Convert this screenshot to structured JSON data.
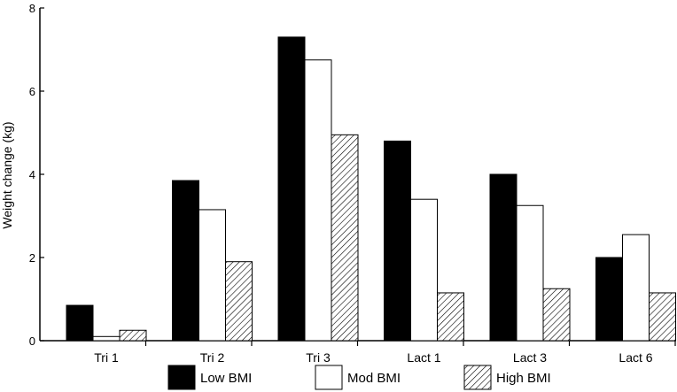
{
  "chart_data": {
    "type": "bar",
    "title": "",
    "xlabel": "",
    "ylabel": "Weight change (kg)",
    "ylim": [
      0,
      8
    ],
    "yticks": [
      0,
      2,
      4,
      6,
      8
    ],
    "categories": [
      "Tri 1",
      "Tri 2",
      "Tri 3",
      "Lact 1",
      "Lact 3",
      "Lact 6"
    ],
    "series": [
      {
        "name": "Low BMI",
        "fill": "solid",
        "color": "#000000",
        "values": [
          0.85,
          3.85,
          7.3,
          4.8,
          4.0,
          2.0
        ]
      },
      {
        "name": "Mod BMI",
        "fill": "open",
        "color": "#ffffff",
        "values": [
          0.1,
          3.15,
          6.75,
          3.4,
          3.25,
          2.55
        ]
      },
      {
        "name": "High BMI",
        "fill": "hatched",
        "color": "#000000",
        "values": [
          0.25,
          1.9,
          4.95,
          1.15,
          1.25,
          1.15
        ]
      }
    ],
    "grid": false,
    "legend": "bottom"
  }
}
